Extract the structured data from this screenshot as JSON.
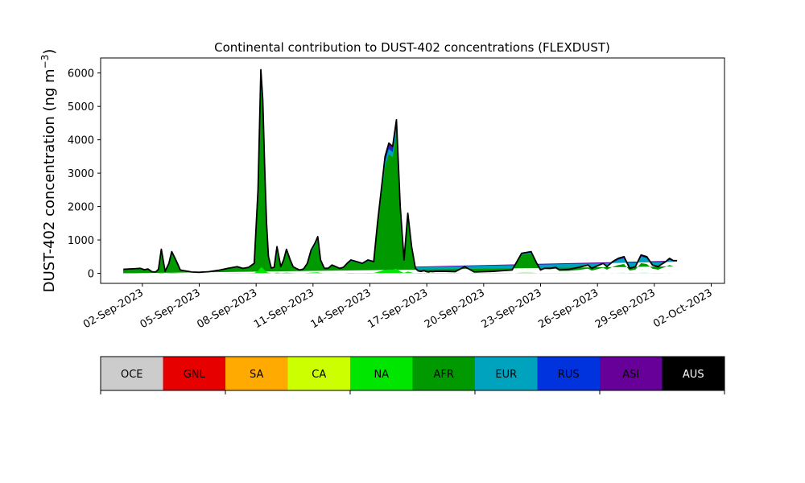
{
  "chart_data": {
    "type": "area",
    "stacked": true,
    "title": "Continental contribution to DUST-402 concentrations (FLEXDUST)",
    "ylabel_main": "DUST-402 concentration (ng m",
    "ylabel_sup": "−3",
    "ylabel_close": ")",
    "x_start": "2023-09-01",
    "x_ticks": [
      "02-Sep-2023",
      "05-Sep-2023",
      "08-Sep-2023",
      "11-Sep-2023",
      "14-Sep-2023",
      "17-Sep-2023",
      "20-Sep-2023",
      "23-Sep-2023",
      "26-Sep-2023",
      "29-Sep-2023",
      "02-Oct-2023"
    ],
    "x_tick_days": [
      1,
      4,
      7,
      10,
      13,
      16,
      19,
      22,
      25,
      28,
      31
    ],
    "xlim_days": [
      -1.2,
      31.7
    ],
    "ylim": [
      -300,
      6450
    ],
    "y_ticks": [
      0,
      1000,
      2000,
      3000,
      4000,
      5000,
      6000
    ],
    "grid": false,
    "legend_position": "below",
    "sources": [
      {
        "name": "OCE",
        "color": "#cccccc",
        "text_color": "#000000"
      },
      {
        "name": "GNL",
        "color": "#e60000",
        "text_color": "#000000"
      },
      {
        "name": "SA",
        "color": "#ffaa00",
        "text_color": "#000000"
      },
      {
        "name": "CA",
        "color": "#ccff00",
        "text_color": "#000000"
      },
      {
        "name": "NA",
        "color": "#00e600",
        "text_color": "#000000"
      },
      {
        "name": "AFR",
        "color": "#009900",
        "text_color": "#000000"
      },
      {
        "name": "EUR",
        "color": "#00a3bd",
        "text_color": "#000000"
      },
      {
        "name": "RUS",
        "color": "#0033dd",
        "text_color": "#000000"
      },
      {
        "name": "ASI",
        "color": "#660099",
        "text_color": "#000000"
      },
      {
        "name": "AUS",
        "color": "#000000",
        "text_color": "#ffffff"
      }
    ],
    "total_series": {
      "day": [
        0,
        0.3,
        0.6,
        0.9,
        1.1,
        1.3,
        1.5,
        1.7,
        1.85,
        2.0,
        2.2,
        2.4,
        2.55,
        2.7,
        2.85,
        3.0,
        3.2,
        3.4,
        3.6,
        4.0,
        4.5,
        5.0,
        5.5,
        6.0,
        6.3,
        6.6,
        6.9,
        7.1,
        7.25,
        7.35,
        7.45,
        7.55,
        7.65,
        7.8,
        7.95,
        8.1,
        8.3,
        8.45,
        8.6,
        8.8,
        8.95,
        9.1,
        9.3,
        9.5,
        9.7,
        9.9,
        10.1,
        10.25,
        10.4,
        10.6,
        10.8,
        11.0,
        11.2,
        11.4,
        11.6,
        11.8,
        12.0,
        12.3,
        12.6,
        12.9,
        13.2,
        13.4,
        13.6,
        13.8,
        14.0,
        14.2,
        14.4,
        14.6,
        14.8,
        15.0,
        15.2,
        15.4,
        15.55,
        15.7,
        15.85,
        16.0,
        16.1,
        16.2,
        16.3,
        16.45,
        16.6,
        16.8,
        17.0,
        17.5,
        18.0,
        18.5,
        19.0,
        19.5,
        20.0,
        20.5,
        21.0,
        21.5,
        21.8,
        22.0,
        22.2,
        22.5,
        22.8,
        23.0,
        23.5,
        24.0,
        24.5,
        24.7,
        24.9,
        25.1,
        25.3,
        25.5,
        25.8,
        26.1,
        26.4,
        26.7,
        27.0,
        27.3,
        27.6,
        27.9,
        28.2,
        28.4,
        28.6,
        28.8,
        29.0,
        29.2,
        29.5,
        29.8,
        30.1,
        30.4,
        30.7
      ],
      "value": [
        120,
        130,
        140,
        150,
        110,
        130,
        50,
        40,
        120,
        720,
        60,
        300,
        650,
        480,
        300,
        100,
        80,
        60,
        40,
        30,
        50,
        90,
        150,
        200,
        150,
        180,
        300,
        2500,
        6100,
        5200,
        3200,
        1500,
        500,
        160,
        180,
        800,
        200,
        400,
        720,
        400,
        200,
        150,
        100,
        130,
        300,
        700,
        900,
        1100,
        400,
        150,
        150,
        250,
        200,
        150,
        180,
        300,
        400,
        350,
        300,
        400,
        350,
        1500,
        2500,
        3500,
        3900,
        3800,
        4600,
        2000,
        400,
        1800,
        800,
        150,
        70,
        60,
        80,
        50,
        40,
        60,
        50,
        60,
        60,
        60,
        60,
        50,
        200,
        40,
        50,
        60,
        80,
        100,
        600,
        650,
        300,
        100,
        150,
        150,
        180,
        100,
        120,
        180,
        250,
        150,
        200,
        250,
        300,
        200,
        350,
        450,
        500,
        150,
        200,
        550,
        500,
        250,
        200,
        280,
        350,
        450,
        380,
        380
      ]
    }
  }
}
